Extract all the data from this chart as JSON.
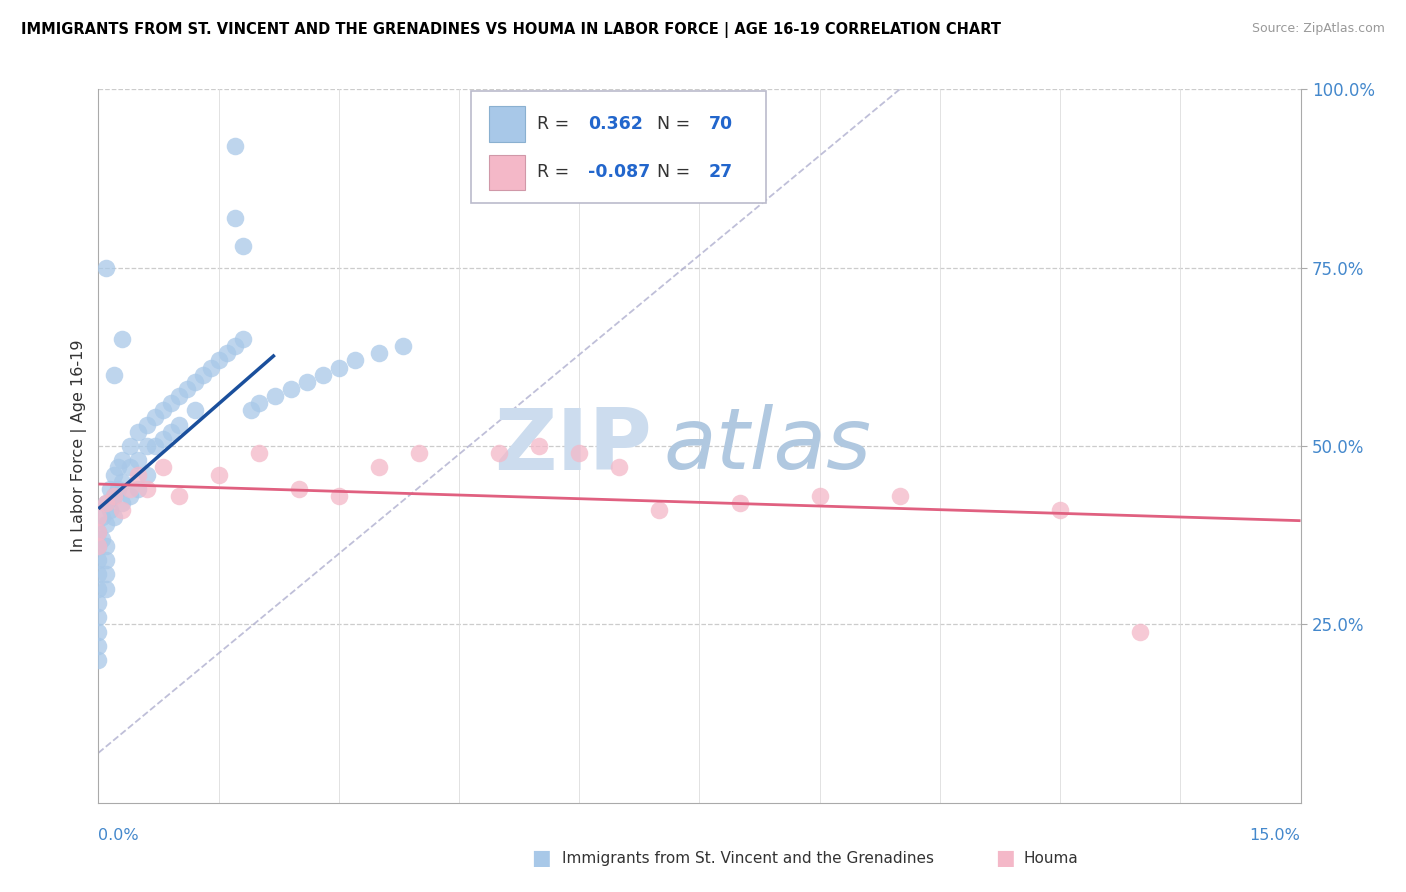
{
  "title": "IMMIGRANTS FROM ST. VINCENT AND THE GRENADINES VS HOUMA IN LABOR FORCE | AGE 16-19 CORRELATION CHART",
  "source": "Source: ZipAtlas.com",
  "ylabel": "In Labor Force | Age 16-19",
  "r_blue": 0.362,
  "n_blue": 70,
  "r_pink": -0.087,
  "n_pink": 27,
  "xlim": [
    0,
    0.15
  ],
  "ylim": [
    0,
    1.0
  ],
  "blue_color": "#a8c8e8",
  "pink_color": "#f4b8c8",
  "blue_line_color": "#1a4f9c",
  "pink_line_color": "#e06080",
  "legend_label_blue": "Immigrants from St. Vincent and the Grenadines",
  "legend_label_pink": "Houma",
  "blue_x": [
    0.0,
    0.0,
    0.0,
    0.0,
    0.0,
    0.0,
    0.0,
    0.0,
    0.0,
    0.0,
    0.0005,
    0.0005,
    0.001,
    0.001,
    0.001,
    0.001,
    0.001,
    0.001,
    0.0015,
    0.0015,
    0.002,
    0.002,
    0.002,
    0.0025,
    0.0025,
    0.003,
    0.003,
    0.003,
    0.004,
    0.004,
    0.004,
    0.005,
    0.005,
    0.005,
    0.006,
    0.006,
    0.006,
    0.007,
    0.007,
    0.008,
    0.008,
    0.009,
    0.009,
    0.01,
    0.01,
    0.011,
    0.012,
    0.012,
    0.013,
    0.014,
    0.015,
    0.016,
    0.017,
    0.018,
    0.019,
    0.02,
    0.022,
    0.024,
    0.026,
    0.028,
    0.03,
    0.032,
    0.035,
    0.038,
    0.017,
    0.017,
    0.018,
    0.002,
    0.003,
    0.001
  ],
  "blue_y": [
    0.38,
    0.36,
    0.34,
    0.32,
    0.3,
    0.28,
    0.26,
    0.24,
    0.22,
    0.2,
    0.4,
    0.37,
    0.42,
    0.39,
    0.36,
    0.34,
    0.32,
    0.3,
    0.44,
    0.41,
    0.46,
    0.43,
    0.4,
    0.47,
    0.44,
    0.48,
    0.45,
    0.42,
    0.5,
    0.47,
    0.43,
    0.52,
    0.48,
    0.44,
    0.53,
    0.5,
    0.46,
    0.54,
    0.5,
    0.55,
    0.51,
    0.56,
    0.52,
    0.57,
    0.53,
    0.58,
    0.59,
    0.55,
    0.6,
    0.61,
    0.62,
    0.63,
    0.64,
    0.65,
    0.55,
    0.56,
    0.57,
    0.58,
    0.59,
    0.6,
    0.61,
    0.62,
    0.63,
    0.64,
    0.92,
    0.82,
    0.78,
    0.6,
    0.65,
    0.75
  ],
  "pink_x": [
    0.0,
    0.0,
    0.0,
    0.001,
    0.002,
    0.003,
    0.004,
    0.005,
    0.006,
    0.008,
    0.01,
    0.015,
    0.02,
    0.025,
    0.03,
    0.035,
    0.04,
    0.05,
    0.055,
    0.06,
    0.065,
    0.07,
    0.08,
    0.09,
    0.1,
    0.12,
    0.13
  ],
  "pink_y": [
    0.4,
    0.38,
    0.36,
    0.42,
    0.43,
    0.41,
    0.44,
    0.46,
    0.44,
    0.47,
    0.43,
    0.46,
    0.49,
    0.44,
    0.43,
    0.47,
    0.49,
    0.49,
    0.5,
    0.49,
    0.47,
    0.41,
    0.42,
    0.43,
    0.43,
    0.41,
    0.24
  ]
}
